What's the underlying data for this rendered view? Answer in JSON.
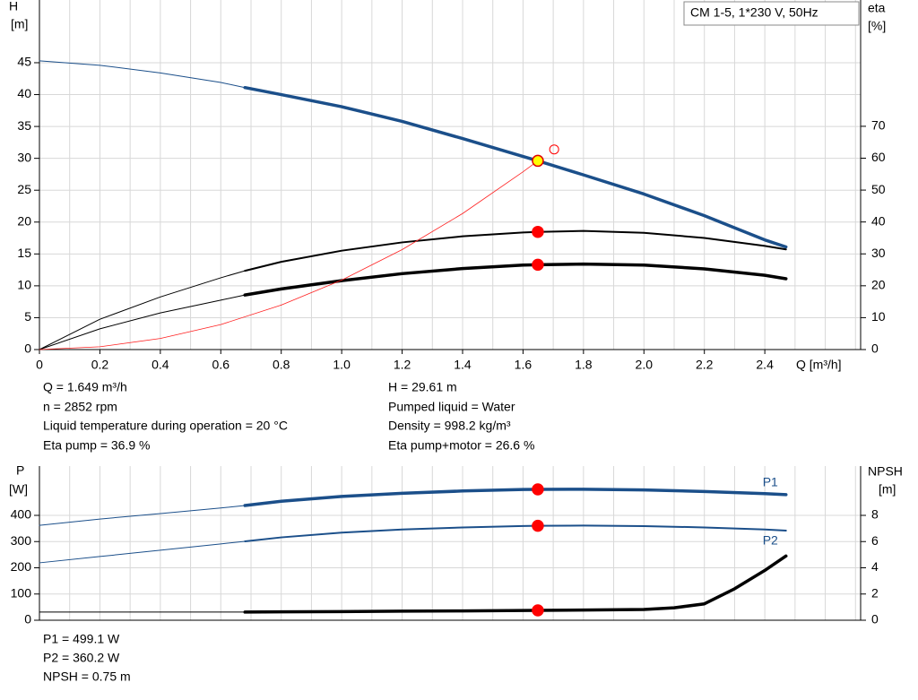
{
  "title": "CM 1-5, 1*230 V, 50Hz",
  "chart_data": [
    {
      "type": "line",
      "xlabel": "Q [m³/h]",
      "ylabel": "H",
      "yunit": "[m]",
      "y2label": "eta",
      "y2unit": "[%]",
      "xlim": [
        0,
        2.717
      ],
      "ylim": [
        0,
        54.84
      ],
      "y2lim": [
        0,
        109.6
      ],
      "xticks": [
        0,
        0.2,
        0.4,
        0.6,
        0.8,
        {
          "value": 1,
          "label": "1.0"
        },
        1.2,
        1.4,
        1.6,
        1.8,
        {
          "value": 2,
          "label": "2.0"
        },
        2.2,
        2.4
      ],
      "xgrid": [
        0,
        0.1,
        0.2,
        0.3,
        0.4,
        0.5,
        0.6,
        0.7,
        0.8,
        0.9,
        1,
        1.1,
        1.2,
        1.3,
        1.4,
        1.5,
        1.6,
        1.7,
        1.8,
        1.9,
        2,
        2.1,
        2.2,
        2.3,
        2.4,
        2.5,
        2.6,
        2.7
      ],
      "yticks": [
        0,
        5,
        10,
        15,
        20,
        25,
        30,
        35,
        40,
        45
      ],
      "y2ticks": [
        0,
        10,
        20,
        30,
        40,
        50,
        60,
        70
      ],
      "grid": true,
      "operating_range": [
        0.68,
        2.47
      ],
      "series": [
        {
          "color": "#1b4f8a",
          "line_width": 3.5,
          "axis": "y",
          "x": [
            0,
            0.2,
            0.4,
            0.6,
            0.68,
            0.8,
            1.0,
            1.2,
            1.4,
            1.6,
            1.649,
            1.8,
            2.0,
            2.2,
            2.4,
            2.47
          ],
          "values": [
            45.3,
            44.6,
            43.4,
            41.9,
            41.1,
            40.0,
            38.1,
            35.8,
            33.1,
            30.3,
            29.61,
            27.4,
            24.4,
            21.0,
            17.2,
            16.1
          ]
        },
        {
          "color": "#000000",
          "line_width": 2,
          "axis": "y2",
          "x": [
            0,
            0.2,
            0.4,
            0.6,
            0.68,
            0.8,
            1.0,
            1.2,
            1.4,
            1.6,
            1.649,
            1.8,
            2.0,
            2.2,
            2.4,
            2.47
          ],
          "values": [
            0,
            9.5,
            16.5,
            22.5,
            24.7,
            27.5,
            31.0,
            33.6,
            35.5,
            36.7,
            36.9,
            37.2,
            36.6,
            35.0,
            32.5,
            31.4
          ]
        },
        {
          "color": "#000000",
          "line_width": 3.5,
          "axis": "y2",
          "x": [
            0,
            0.2,
            0.4,
            0.6,
            0.68,
            0.8,
            1.0,
            1.2,
            1.4,
            1.6,
            1.649,
            1.8,
            2.0,
            2.2,
            2.4,
            2.47
          ],
          "values": [
            0,
            6.5,
            11.5,
            15.5,
            17.1,
            19.0,
            21.6,
            23.8,
            25.4,
            26.5,
            26.6,
            26.8,
            26.5,
            25.3,
            23.3,
            22.2
          ]
        },
        {
          "color": "#ff2020",
          "line_width": 0.8,
          "axis": "y",
          "x": [
            0,
            0.2,
            0.4,
            0.6,
            0.8,
            1.0,
            1.2,
            1.4,
            1.6,
            1.649
          ],
          "values": [
            0,
            0.44,
            1.74,
            3.92,
            6.97,
            10.89,
            15.68,
            21.34,
            27.88,
            29.61
          ]
        }
      ],
      "markers": [
        {
          "x": 1.649,
          "y": 29.61,
          "axis": "y",
          "color": "#ffff00",
          "edge": "#e00000"
        },
        {
          "x": 1.649,
          "y": 36.9,
          "axis": "y2",
          "color": "#ff0000",
          "edge": "#ff0000"
        },
        {
          "x": 1.649,
          "y": 26.6,
          "axis": "y2",
          "color": "#ff0000",
          "edge": "#ff0000"
        },
        {
          "x": 1.703,
          "y": 31.4,
          "axis": "y",
          "color": "none",
          "edge": "#ff0000"
        }
      ]
    },
    {
      "type": "line",
      "ylabel": "P",
      "yunit": "[W]",
      "y2label": "NPSH",
      "y2unit": "[m]",
      "xlim": [
        0,
        2.717
      ],
      "ylim": [
        0,
        588
      ],
      "y2lim": [
        0,
        11.76
      ],
      "xgrid": [
        0,
        0.1,
        0.2,
        0.3,
        0.4,
        0.5,
        0.6,
        0.7,
        0.8,
        0.9,
        1,
        1.1,
        1.2,
        1.3,
        1.4,
        1.5,
        1.6,
        1.7,
        1.8,
        1.9,
        2,
        2.1,
        2.2,
        2.3,
        2.4,
        2.5,
        2.6,
        2.7
      ],
      "yticks": [
        0,
        100,
        200,
        300,
        400
      ],
      "y2ticks": [
        0,
        2,
        4,
        6,
        8
      ],
      "grid": true,
      "operating_range": [
        0.68,
        2.47
      ],
      "series": [
        {
          "name": "P1",
          "color": "#1b4f8a",
          "line_width": 3.5,
          "axis": "y",
          "x": [
            0,
            0.2,
            0.4,
            0.6,
            0.68,
            0.8,
            1.0,
            1.2,
            1.4,
            1.6,
            1.649,
            1.8,
            2.0,
            2.2,
            2.4,
            2.47
          ],
          "values": [
            362,
            386,
            407,
            428,
            437.6,
            454,
            472,
            484,
            493,
            498.5,
            499.1,
            499.5,
            497,
            491,
            483,
            479
          ]
        },
        {
          "name": "P2",
          "color": "#1b4f8a",
          "line_width": 2,
          "axis": "y",
          "x": [
            0,
            0.2,
            0.4,
            0.6,
            0.68,
            0.8,
            1.0,
            1.2,
            1.4,
            1.6,
            1.649,
            1.8,
            2.0,
            2.2,
            2.4,
            2.47
          ],
          "values": [
            219,
            243,
            267,
            291,
            301,
            316,
            334,
            346,
            354,
            359.5,
            360.2,
            361,
            359,
            354,
            346,
            342
          ]
        },
        {
          "color": "#000000",
          "line_width": 3.5,
          "axis": "y2",
          "x": [
            0,
            0.2,
            0.4,
            0.6,
            0.68,
            0.8,
            1.0,
            1.2,
            1.4,
            1.6,
            1.649,
            1.8,
            2.0,
            2.1,
            2.2,
            2.3,
            2.4,
            2.47
          ],
          "values": [
            0.62,
            0.62,
            0.62,
            0.62,
            0.62,
            0.64,
            0.66,
            0.69,
            0.71,
            0.74,
            0.75,
            0.78,
            0.82,
            0.95,
            1.25,
            2.4,
            3.8,
            4.9
          ]
        }
      ],
      "markers": [
        {
          "x": 1.649,
          "y": 499.1,
          "axis": "y",
          "color": "#ff0000",
          "edge": "#ff0000"
        },
        {
          "x": 1.649,
          "y": 360.2,
          "axis": "y",
          "color": "#ff0000",
          "edge": "#ff0000"
        },
        {
          "x": 1.649,
          "y": 0.75,
          "axis": "y2",
          "color": "#ff0000",
          "edge": "#ff0000"
        }
      ]
    }
  ],
  "readouts": {
    "top_left": [
      "Q = 1.649 m³/h",
      "n = 2852 rpm",
      "Liquid temperature during operation = 20 °C",
      "Eta pump = 36.9 %"
    ],
    "top_right": [
      "H = 29.61 m",
      "Pumped liquid = Water",
      "Density = 998.2 kg/m³",
      "Eta pump+motor = 26.6 %"
    ],
    "bottom": [
      "P1 = 499.1 W",
      "P2 = 360.2 W",
      "NPSH = 0.75 m"
    ]
  }
}
